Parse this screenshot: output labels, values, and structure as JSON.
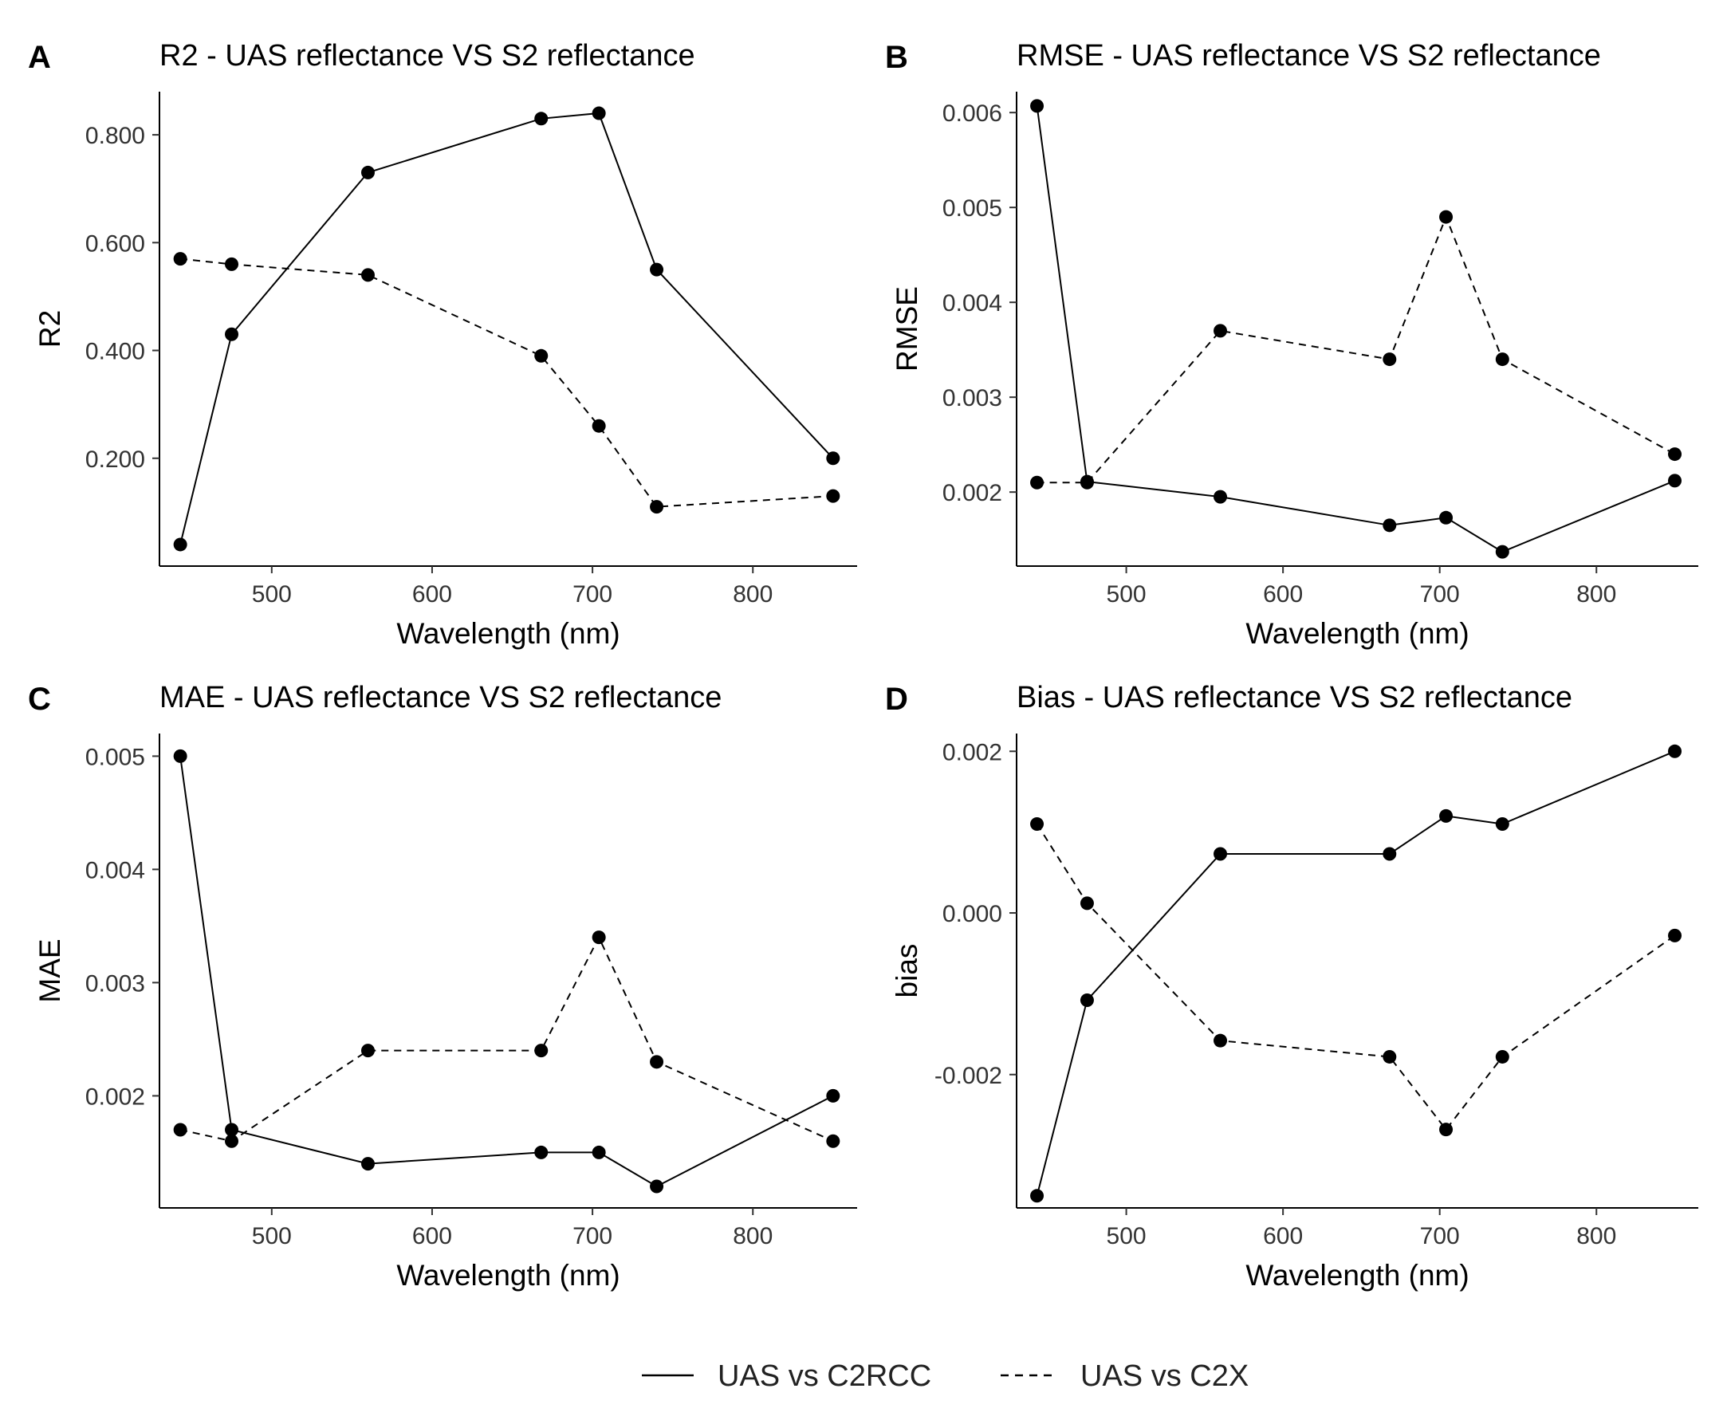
{
  "chart_data": [
    {
      "panel": "A",
      "type": "line",
      "title": "R2 - UAS reflectance VS S2 reflectance",
      "xlabel": "Wavelength (nm)",
      "ylabel": "R2",
      "xlim": [
        430,
        865
      ],
      "ylim": [
        0.0,
        0.88
      ],
      "xticks": [
        500,
        600,
        700,
        800
      ],
      "yticks": [
        0.2,
        0.4,
        0.6,
        0.8
      ],
      "ytick_labels": [
        "0.200",
        "0.400",
        "0.600",
        "0.800"
      ],
      "x": [
        443,
        475,
        560,
        668,
        704,
        740,
        850
      ],
      "series": [
        {
          "name": "UAS vs C2RCC",
          "style": "solid",
          "values": [
            0.04,
            0.43,
            0.73,
            0.83,
            0.84,
            0.55,
            0.2
          ]
        },
        {
          "name": "UAS vs C2X",
          "style": "dashed",
          "values": [
            0.57,
            0.56,
            0.54,
            0.39,
            0.26,
            0.11,
            0.13
          ]
        }
      ]
    },
    {
      "panel": "B",
      "type": "line",
      "title": "RMSE - UAS reflectance VS S2 reflectance",
      "xlabel": "Wavelength (nm)",
      "ylabel": "RMSE",
      "xlim": [
        430,
        865
      ],
      "ylim": [
        0.00122,
        0.00622
      ],
      "xticks": [
        500,
        600,
        700,
        800
      ],
      "yticks": [
        0.002,
        0.003,
        0.004,
        0.005,
        0.006
      ],
      "ytick_labels": [
        "0.002",
        "0.003",
        "0.004",
        "0.005",
        "0.006"
      ],
      "x": [
        443,
        475,
        560,
        668,
        704,
        740,
        850
      ],
      "series": [
        {
          "name": "UAS vs C2RCC",
          "style": "solid",
          "values": [
            0.00607,
            0.00211,
            0.00195,
            0.00165,
            0.00173,
            0.00137,
            0.00212
          ]
        },
        {
          "name": "UAS vs C2X",
          "style": "dashed",
          "values": [
            0.0021,
            0.0021,
            0.0037,
            0.0034,
            0.0049,
            0.0034,
            0.0024
          ]
        }
      ]
    },
    {
      "panel": "C",
      "type": "line",
      "title": "MAE - UAS reflectance VS S2 reflectance",
      "xlabel": "Wavelength (nm)",
      "ylabel": "MAE",
      "xlim": [
        430,
        865
      ],
      "ylim": [
        0.00101,
        0.0052
      ],
      "xticks": [
        500,
        600,
        700,
        800
      ],
      "yticks": [
        0.002,
        0.003,
        0.004,
        0.005
      ],
      "ytick_labels": [
        "0.002",
        "0.003",
        "0.004",
        "0.005"
      ],
      "x": [
        443,
        475,
        560,
        668,
        704,
        740,
        850
      ],
      "series": [
        {
          "name": "UAS vs C2RCC",
          "style": "solid",
          "values": [
            0.005,
            0.0017,
            0.0014,
            0.0015,
            0.0015,
            0.0012,
            0.002
          ]
        },
        {
          "name": "UAS vs C2X",
          "style": "dashed",
          "values": [
            0.0017,
            0.0016,
            0.0024,
            0.0024,
            0.0034,
            0.0023,
            0.0016
          ]
        }
      ]
    },
    {
      "panel": "D",
      "type": "line",
      "title": "Bias - UAS reflectance VS S2 reflectance",
      "xlabel": "Wavelength (nm)",
      "ylabel": "bias",
      "xlim": [
        430,
        865
      ],
      "ylim": [
        -0.00365,
        0.00222
      ],
      "xticks": [
        500,
        600,
        700,
        800
      ],
      "yticks": [
        -0.002,
        0.0,
        0.002
      ],
      "ytick_labels": [
        "-0.002",
        "0.000",
        "0.002"
      ],
      "x": [
        443,
        475,
        560,
        668,
        704,
        740,
        850
      ],
      "series": [
        {
          "name": "UAS vs C2RCC",
          "style": "solid",
          "values": [
            -0.0035,
            -0.00108,
            0.00073,
            0.00073,
            0.0012,
            0.0011,
            0.002
          ]
        },
        {
          "name": "UAS vs C2X",
          "style": "dashed",
          "values": [
            0.0011,
            0.00012,
            -0.00158,
            -0.00178,
            -0.00268,
            -0.00178,
            -0.00028
          ]
        }
      ]
    }
  ],
  "legend": {
    "items": [
      {
        "label": "UAS vs C2RCC",
        "style": "solid"
      },
      {
        "label": "UAS vs C2X",
        "style": "dashed"
      }
    ]
  }
}
